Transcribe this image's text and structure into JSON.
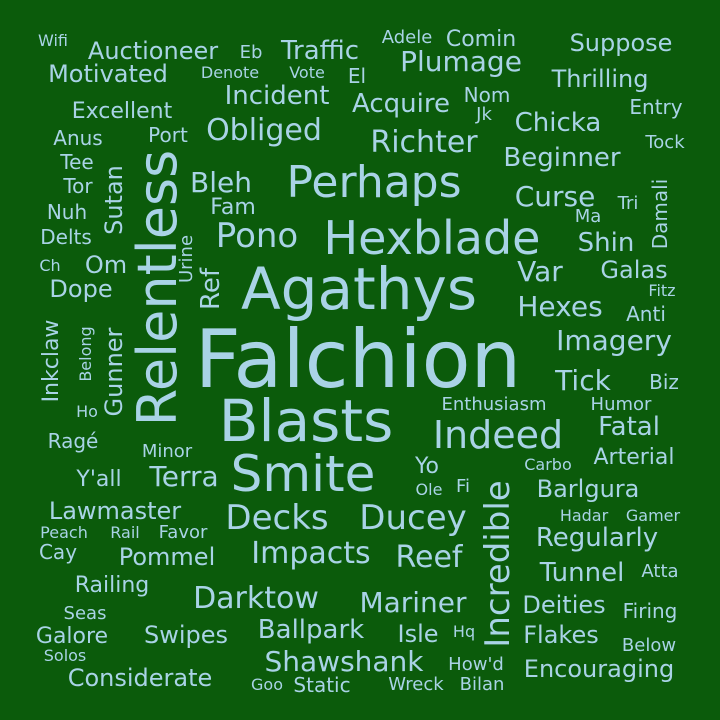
{
  "background_color": "#0b5b0b",
  "text_color": "#a9d3e6",
  "words": [
    "Falchion",
    "Agathys",
    "Blasts",
    "Smite",
    "Hexblade",
    "Relentless",
    "Perhaps",
    "Indeed",
    "Incredible",
    "Decks",
    "Ducey",
    "Impacts",
    "Reef",
    "Darktow",
    "Mariner",
    "Shawshank",
    "Ballpark",
    "Richter",
    "Obliged",
    "Acquire",
    "Incident",
    "Traffic",
    "Auctioneer",
    "Motivated",
    "Plumage",
    "Excellent",
    "Chicka",
    "Beginner",
    "Curse",
    "Pono",
    "Bleh",
    "Sutan",
    "Gunner",
    "Inkclaw",
    "Dope",
    "Terra",
    "Lawmaster",
    "Pommel",
    "Railing",
    "Swipes",
    "Galore",
    "Considerate",
    "Regularly",
    "Tunnel",
    "Deities",
    "Flakes",
    "Encouraging",
    "Imagery",
    "Tick",
    "Fatal",
    "Arterial",
    "Barlgura",
    "Hexes",
    "Var",
    "Shin",
    "Galas",
    "Damali",
    "Suppose",
    "Thrilling",
    "Comin",
    "Adele",
    "Nom",
    "Jk",
    "Entry",
    "Tock",
    "Tri",
    "Ma",
    "Fitz",
    "Anti",
    "Biz",
    "Enthusiasm",
    "Humor",
    "Carbo",
    "Hadar",
    "Gamer",
    "Atta",
    "Firing",
    "Below",
    "How'd",
    "Bilan",
    "Wreck",
    "Static",
    "Goo",
    "Isle",
    "Hq",
    "Solos",
    "Seas",
    "Cay",
    "Peach",
    "Rail",
    "Favor",
    "Y'all",
    "Minor",
    "Ragé",
    "Ho",
    "Belong",
    "Ch",
    "Delts",
    "Nuh",
    "Tor",
    "Tee",
    "Anus",
    "Port",
    "Fam",
    "Urine",
    "Ref",
    "Om",
    "Wifi",
    "Eb",
    "Denote",
    "Vote",
    "El",
    "Yo",
    "Ole",
    "Fi"
  ]
}
